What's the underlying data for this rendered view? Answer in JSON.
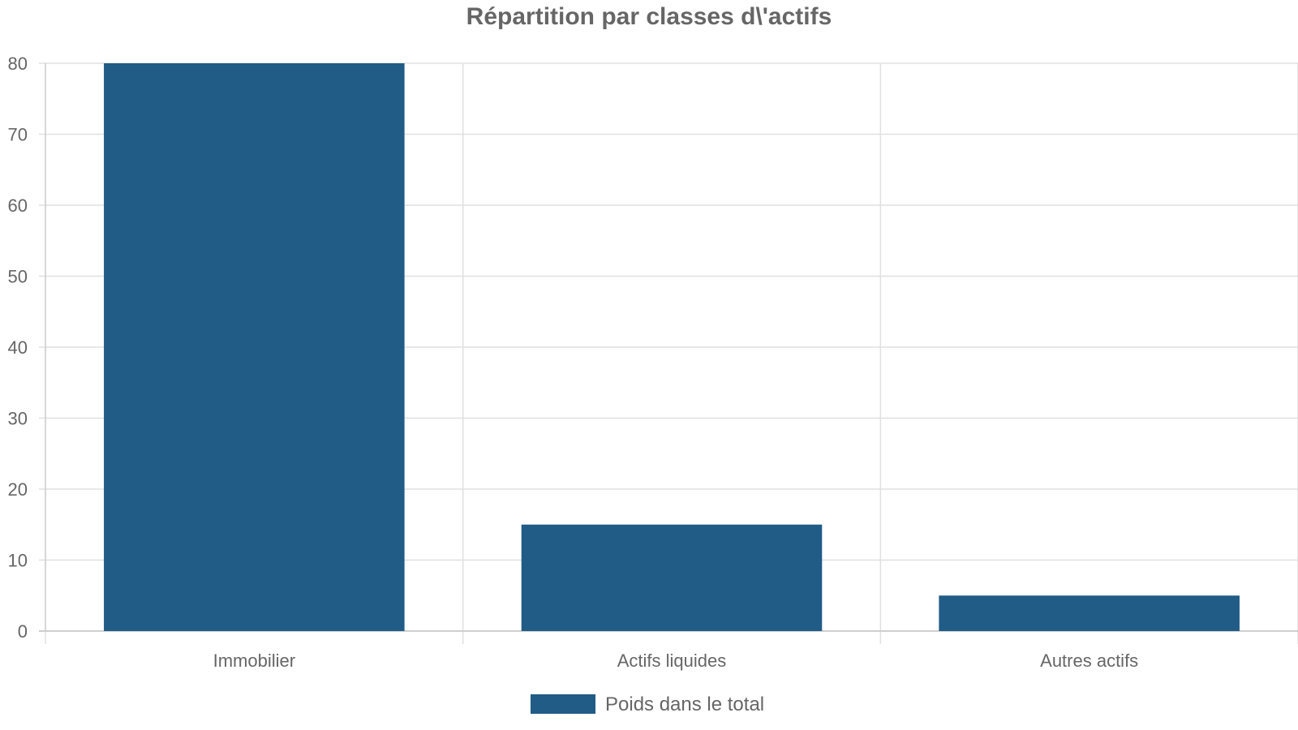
{
  "chart_data": {
    "type": "bar",
    "title": "Répartition par classes d\\'actifs",
    "xlabel": "",
    "ylabel": "",
    "categories": [
      "Immobilier",
      "Actifs liquides",
      "Autres actifs"
    ],
    "series": [
      {
        "name": "Poids dans le total",
        "values": [
          80,
          15,
          5
        ],
        "color": "#205c86"
      }
    ],
    "ylim": [
      0,
      80
    ],
    "yticks": [
      "0",
      "10",
      "20",
      "30",
      "40",
      "50",
      "60",
      "70",
      "80"
    ],
    "grid": true,
    "legend_position": "bottom-center",
    "colors": {
      "text": "#666666",
      "grid": "#e0e0e0",
      "axis": "#cfcfcf"
    }
  }
}
